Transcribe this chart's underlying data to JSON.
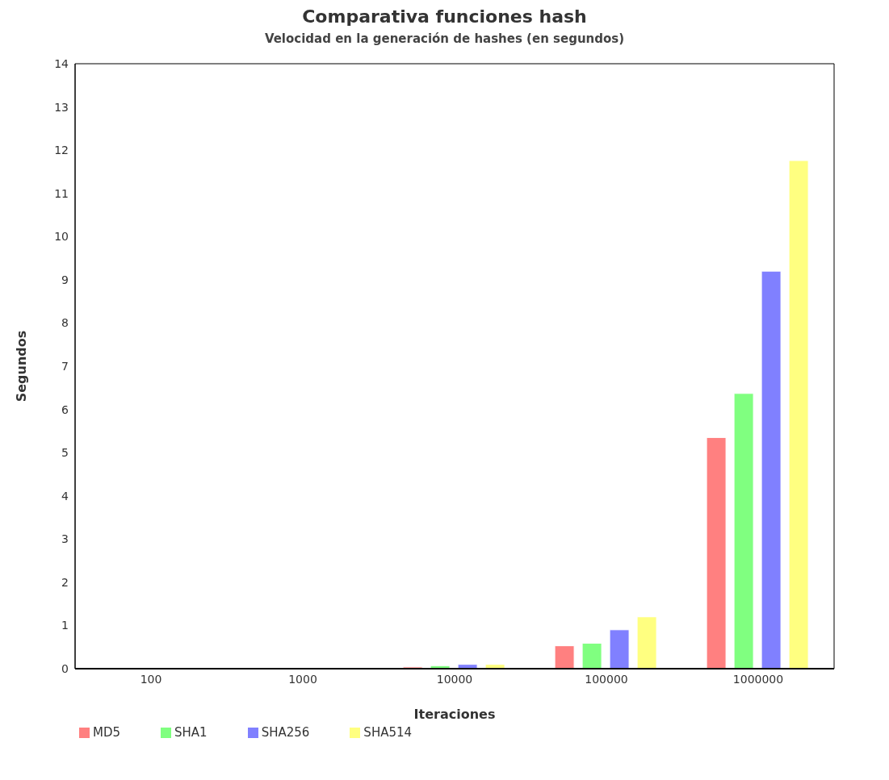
{
  "chart_data": {
    "type": "bar",
    "title": "Comparativa funciones hash",
    "subtitle": "Velocidad en la generación de hashes (en segundos)",
    "xlabel": "Iteraciones",
    "ylabel": "Segundos",
    "categories": [
      "100",
      "1000",
      "10000",
      "100000",
      "1000000"
    ],
    "series": [
      {
        "name": "MD5",
        "color": "#ff8080",
        "values": [
          0,
          0,
          0.04,
          0.53,
          5.35
        ]
      },
      {
        "name": "SHA1",
        "color": "#80ff80",
        "values": [
          0,
          0,
          0.07,
          0.59,
          6.37
        ]
      },
      {
        "name": "SHA256",
        "color": "#8080ff",
        "values": [
          0,
          0,
          0.1,
          0.9,
          9.2
        ]
      },
      {
        "name": "SHA514",
        "color": "#ffff80",
        "values": [
          0,
          0,
          0.1,
          1.2,
          11.76
        ]
      }
    ],
    "ylim": [
      0,
      14
    ],
    "yticks": [
      0,
      1,
      2,
      3,
      4,
      5,
      6,
      7,
      8,
      9,
      10,
      11,
      12,
      13,
      14
    ],
    "grid": false,
    "legend": "bottom left"
  }
}
